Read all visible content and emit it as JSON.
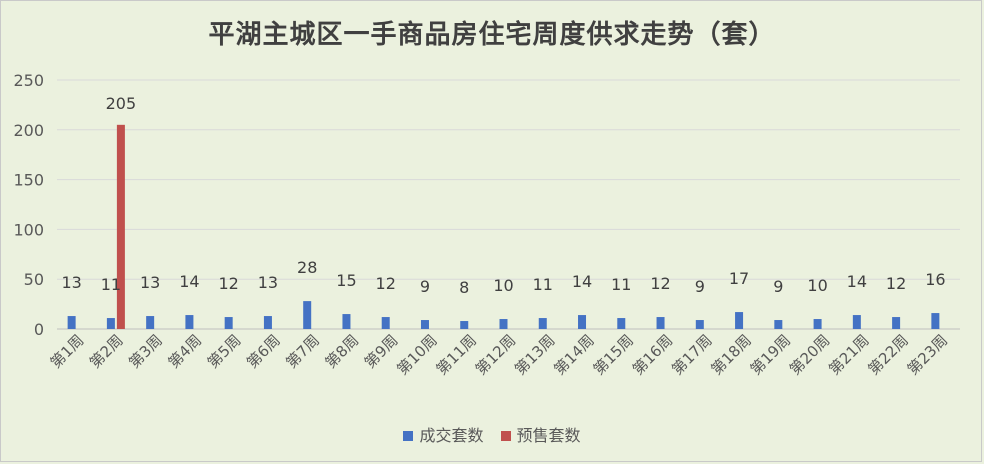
{
  "chart_data": {
    "type": "bar",
    "title": "平湖主城区一手商品房住宅周度供求走势（套）",
    "categories": [
      "第1周",
      "第2周",
      "第3周",
      "第4周",
      "第5周",
      "第6周",
      "第7周",
      "第8周",
      "第9周",
      "第10周",
      "第11周",
      "第12周",
      "第13周",
      "第14周",
      "第15周",
      "第16周",
      "第17周",
      "第18周",
      "第19周",
      "第20周",
      "第21周",
      "第22周",
      "第23周"
    ],
    "series": [
      {
        "name": "成交套数",
        "color": "#4472c4",
        "values": [
          13,
          11,
          13,
          14,
          12,
          13,
          28,
          15,
          12,
          9,
          8,
          10,
          11,
          14,
          11,
          12,
          9,
          17,
          9,
          10,
          14,
          12,
          16
        ]
      },
      {
        "name": "预售套数",
        "color": "#c0504d",
        "values": [
          0,
          205,
          0,
          0,
          0,
          0,
          0,
          0,
          0,
          0,
          0,
          0,
          0,
          0,
          0,
          0,
          0,
          0,
          0,
          0,
          0,
          0,
          0
        ]
      }
    ],
    "data_labels": {
      "成交套数": [
        "13",
        "11",
        "13",
        "14",
        "12",
        "13",
        "28",
        "15",
        "12",
        "9",
        "8",
        "10",
        "11",
        "14",
        "11",
        "12",
        "9",
        "17",
        "9",
        "10",
        "14",
        "12",
        "16"
      ],
      "预售套数": [
        "",
        "205",
        "",
        "",
        "",
        "",
        "",
        "",
        "",
        "",
        "",
        "",
        "",
        "",
        "",
        "",
        "",
        "",
        "",
        "",
        "",
        "",
        ""
      ]
    },
    "yticks": [
      "0",
      "50",
      "100",
      "150",
      "200",
      "250"
    ],
    "ylim": [
      0,
      250
    ],
    "grid": true,
    "legend_position": "bottom"
  }
}
